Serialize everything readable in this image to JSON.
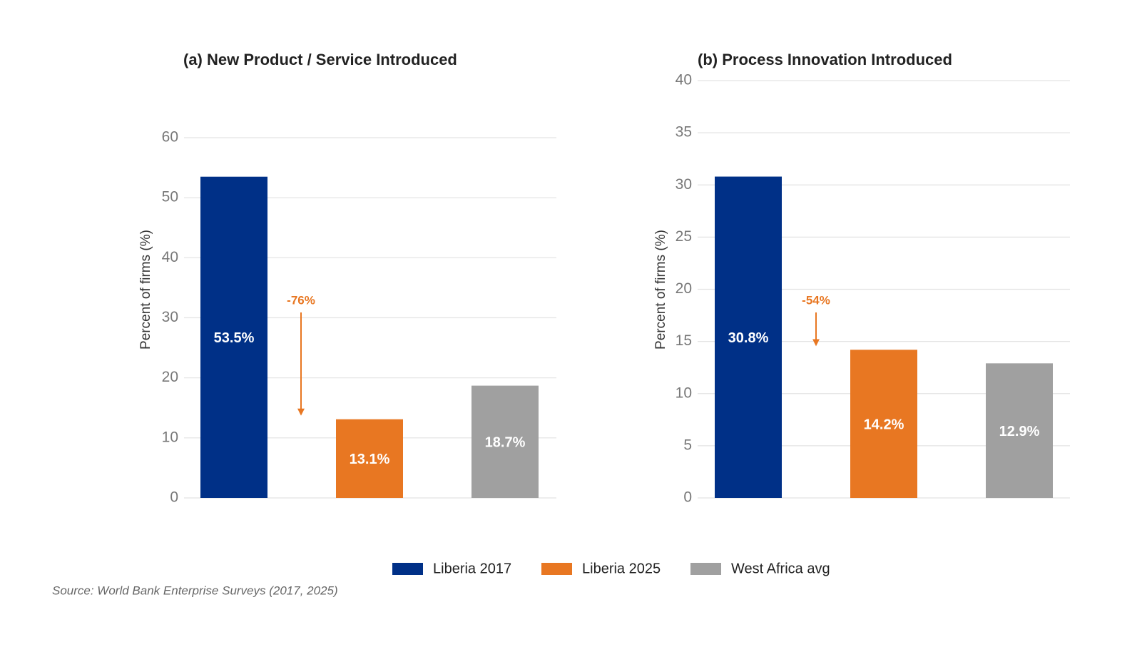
{
  "chart_data": [
    {
      "type": "bar",
      "title": "(a)  New Product / Service Introduced",
      "ylabel": "Percent of firms (%)",
      "values": [
        53.5,
        13.1,
        18.7
      ],
      "value_labels": [
        "53.5%",
        "13.1%",
        "18.7%"
      ],
      "annotation": "-76%",
      "ylim": [
        0,
        60
      ],
      "yticks": [
        0,
        10,
        20,
        30,
        40,
        50,
        60
      ],
      "grid": true
    },
    {
      "type": "bar",
      "title": "(b)  Process Innovation Introduced",
      "ylabel": "Percent of firms (%)",
      "values": [
        30.8,
        14.2,
        12.9
      ],
      "value_labels": [
        "30.8%",
        "14.2%",
        "12.9%"
      ],
      "annotation": "-54%",
      "ylim": [
        0,
        40
      ],
      "yticks": [
        0,
        5,
        10,
        15,
        20,
        25,
        30,
        35,
        40
      ],
      "grid": true
    }
  ],
  "legend": [
    {
      "name": "Liberia 2017",
      "color": "#003087"
    },
    {
      "name": "Liberia 2025",
      "color": "#e87722"
    },
    {
      "name": "West Africa avg",
      "color": "#a0a0a0"
    }
  ],
  "source": "Source: World Bank Enterprise Surveys (2017, 2025)"
}
